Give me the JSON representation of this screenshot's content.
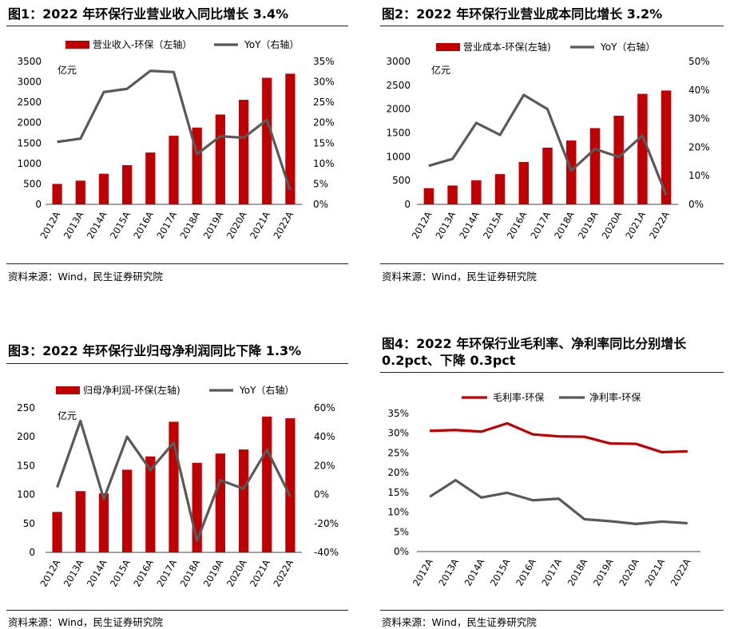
{
  "colors": {
    "bar": "#C00000",
    "yoy": "#595959",
    "gross": "#C00000",
    "net": "#595959"
  },
  "chart_data": [
    {
      "type": "bar+line",
      "title": "图1：2022 年环保行业营业收入同比增长 3.4%",
      "unit_label": "亿元",
      "source": "资料来源：Wind，民生证券研究院",
      "categories": [
        "2012A",
        "2013A",
        "2014A",
        "2015A",
        "2016A",
        "2017A",
        "2018A",
        "2019A",
        "2020A",
        "2021A",
        "2022A"
      ],
      "series": [
        {
          "name": "营业收入-环保（左轴）",
          "values": [
            500,
            580,
            750,
            960,
            1270,
            1680,
            1880,
            2200,
            2560,
            3100,
            3200
          ]
        },
        {
          "name": "YoY（右轴）",
          "values": [
            15.3,
            16.1,
            27.5,
            28.3,
            32.7,
            32.4,
            12.3,
            16.7,
            16.3,
            20.7,
            3.4
          ]
        }
      ],
      "yleft_ticks": [
        "3500",
        "3000",
        "2500",
        "2000",
        "1500",
        "1000",
        "500",
        "0"
      ],
      "yright_ticks": [
        "35%",
        "30%",
        "25%",
        "20%",
        "15%",
        "10%",
        "5%",
        "0%"
      ],
      "ylim_left": [
        0,
        3500
      ],
      "ylim_right": [
        0,
        35
      ]
    },
    {
      "type": "bar+line",
      "title": "图2：2022 年环保行业营业成本同比增长 3.2%",
      "unit_label": "亿元",
      "source": "资料来源：Wind，民生证券研究院",
      "categories": [
        "2012A",
        "2013A",
        "2014A",
        "2015A",
        "2016A",
        "2017A",
        "2018A",
        "2019A",
        "2020A",
        "2021A",
        "2022A"
      ],
      "series": [
        {
          "name": "营业成本-环保(左轴)",
          "values": [
            340,
            395,
            505,
            635,
            890,
            1190,
            1340,
            1600,
            1860,
            2320,
            2390
          ]
        },
        {
          "name": "YoY（右轴）",
          "values": [
            13.5,
            15.9,
            28.5,
            24.3,
            38.3,
            33.3,
            11.8,
            19.4,
            16.6,
            24.1,
            3.2
          ]
        }
      ],
      "yleft_ticks": [
        "3000",
        "2500",
        "2000",
        "1500",
        "1000",
        "500",
        "0"
      ],
      "yright_ticks": [
        "50%",
        "40%",
        "30%",
        "20%",
        "10%",
        "0%"
      ],
      "ylim_left": [
        0,
        3000
      ],
      "ylim_right": [
        0,
        50
      ]
    },
    {
      "type": "bar+line",
      "title": "图3：2022 年环保行业归母净利润同比下降 1.3%",
      "unit_label": "亿元",
      "source": "资料来源：Wind，民生证券研究院",
      "categories": [
        "2012A",
        "2013A",
        "2014A",
        "2015A",
        "2016A",
        "2017A",
        "2018A",
        "2019A",
        "2020A",
        "2021A",
        "2022A"
      ],
      "series": [
        {
          "name": "归母净利润-环保(左轴)",
          "values": [
            70,
            106,
            102,
            143,
            166,
            226,
            155,
            171,
            178,
            235,
            232
          ]
        },
        {
          "name": "YoY（右轴）",
          "values": [
            5,
            51,
            -3,
            40,
            17,
            36,
            -32,
            10,
            4,
            31,
            -1.3
          ]
        }
      ],
      "yleft_ticks": [
        "250",
        "200",
        "150",
        "100",
        "50",
        "0"
      ],
      "yright_ticks": [
        "60%",
        "40%",
        "20%",
        "0%",
        "-20%",
        "-40%"
      ],
      "ylim_left": [
        0,
        250
      ],
      "ylim_right": [
        -40,
        60
      ]
    },
    {
      "type": "line",
      "title_line1": "图4：2022  年环保行业毛利率、净利率同比分别增长",
      "title_line2": "0.2pct、下降 0.3pct",
      "source": "资料来源：Wind，民生证券研究院",
      "categories": [
        "2012A",
        "2013A",
        "2014A",
        "2015A",
        "2016A",
        "2017A",
        "2018A",
        "2019A",
        "2020A",
        "2021A",
        "2022A"
      ],
      "series": [
        {
          "name": "毛利率-环保",
          "values": [
            30.6,
            30.8,
            30.4,
            32.5,
            29.7,
            29.2,
            29.1,
            27.4,
            27.3,
            25.2,
            25.4
          ]
        },
        {
          "name": "净利率-环保",
          "values": [
            13.9,
            18.1,
            13.7,
            14.9,
            13.0,
            13.4,
            8.2,
            7.7,
            7.0,
            7.6,
            7.2
          ]
        }
      ],
      "y_ticks": [
        "35%",
        "30%",
        "25%",
        "20%",
        "15%",
        "10%",
        "5%",
        "0%"
      ],
      "ylim": [
        0,
        35
      ]
    }
  ]
}
